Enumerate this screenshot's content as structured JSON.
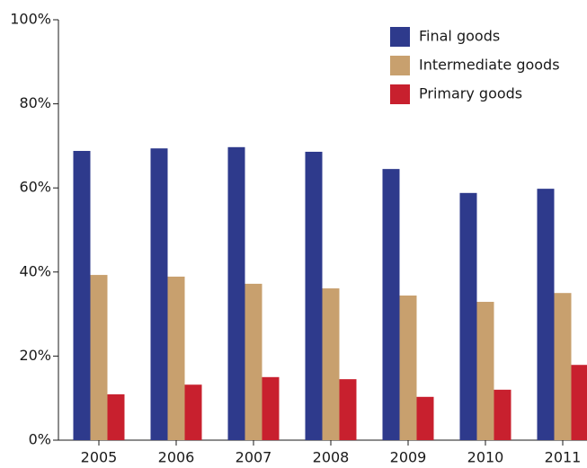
{
  "chart_data": {
    "type": "bar",
    "categories": [
      "2005",
      "2006",
      "2007",
      "2008",
      "2009",
      "2010",
      "2011"
    ],
    "series": [
      {
        "name": "Final goods",
        "color": "#2e3a8c",
        "values": [
          68.8,
          69.4,
          69.7,
          68.6,
          64.5,
          58.8,
          59.8
        ]
      },
      {
        "name": "Intermediate goods",
        "color": "#c8a06e",
        "values": [
          39.3,
          38.9,
          37.2,
          36.1,
          34.4,
          32.9,
          35.0
        ]
      },
      {
        "name": "Primary goods",
        "color": "#c8202e",
        "values": [
          10.9,
          13.2,
          15.0,
          14.5,
          10.3,
          12.0,
          17.9
        ]
      }
    ],
    "ylim": [
      0,
      100
    ],
    "yticks": [
      {
        "value": 0,
        "label": "0%"
      },
      {
        "value": 20,
        "label": "20%"
      },
      {
        "value": 40,
        "label": "40%"
      },
      {
        "value": 60,
        "label": "60%"
      },
      {
        "value": 80,
        "label": "80%"
      },
      {
        "value": 100,
        "label": "100%"
      }
    ],
    "legend": "upper right"
  }
}
